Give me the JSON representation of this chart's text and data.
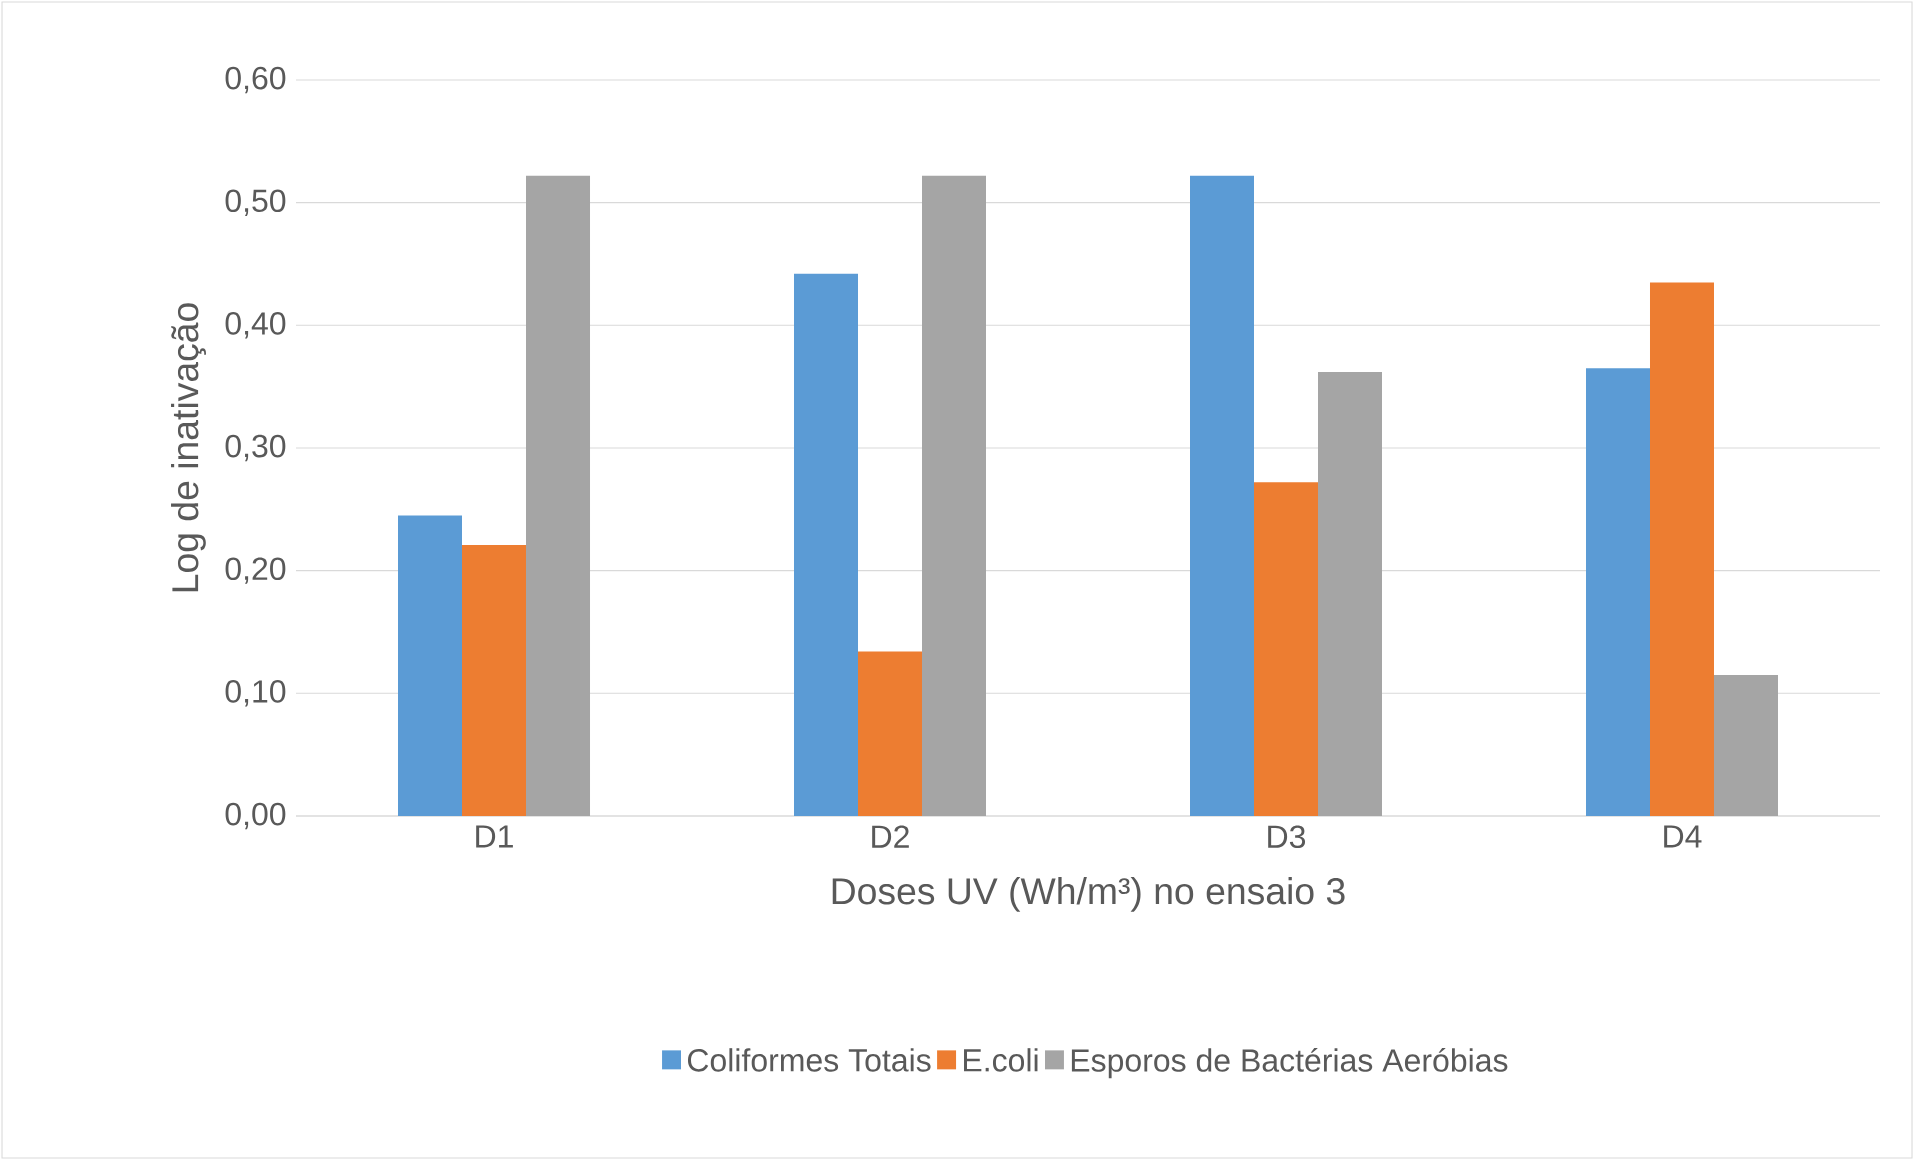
{
  "chart_data": {
    "type": "bar",
    "xlabel": "Doses UV (Wh/m³) no ensaio 3",
    "ylabel": "Log de inativação",
    "categories": [
      "D1",
      "D2",
      "D3",
      "D4"
    ],
    "series": [
      {
        "name": "Coliformes Totais",
        "color": "#5b9bd5",
        "values": [
          0.245,
          0.442,
          0.522,
          0.365
        ]
      },
      {
        "name": "E.coli",
        "color": "#ed7d31",
        "values": [
          0.221,
          0.134,
          0.272,
          0.435
        ]
      },
      {
        "name": "Esporos de Bactérias Aeróbias",
        "color": "#a5a5a5",
        "values": [
          0.522,
          0.522,
          0.362,
          0.115
        ]
      }
    ],
    "ylim": [
      0,
      0.6
    ],
    "yticks": [
      {
        "value": 0,
        "label": "0,00"
      },
      {
        "value": 0.1,
        "label": "0,10"
      },
      {
        "value": 0.2,
        "label": "0,20"
      },
      {
        "value": 0.3,
        "label": "0,30"
      },
      {
        "value": 0.4,
        "label": "0,40"
      },
      {
        "value": 0.5,
        "label": "0,50"
      },
      {
        "value": 0.6,
        "label": "0,60"
      }
    ],
    "grid": "y",
    "legend": "bottom"
  }
}
